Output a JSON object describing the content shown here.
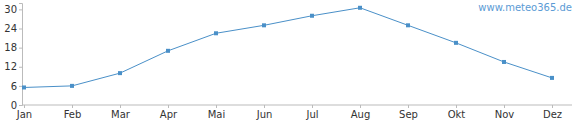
{
  "chart_data": {
    "type": "line",
    "annotations": [
      "www.meteo365.de"
    ],
    "categories": [
      "Jan",
      "Feb",
      "Mar",
      "Apr",
      "Mai",
      "Jun",
      "Jul",
      "Aug",
      "Sep",
      "Okt",
      "Nov",
      "Dez"
    ],
    "values": [
      5.5,
      6,
      10,
      17,
      22.5,
      25,
      28,
      30.5,
      25,
      19.5,
      13.5,
      8.5
    ],
    "color": "#4a90c8",
    "marker": "square",
    "ylim": [
      0,
      32
    ],
    "yticks": [
      0,
      6,
      12,
      18,
      24,
      30
    ],
    "grid": false
  }
}
